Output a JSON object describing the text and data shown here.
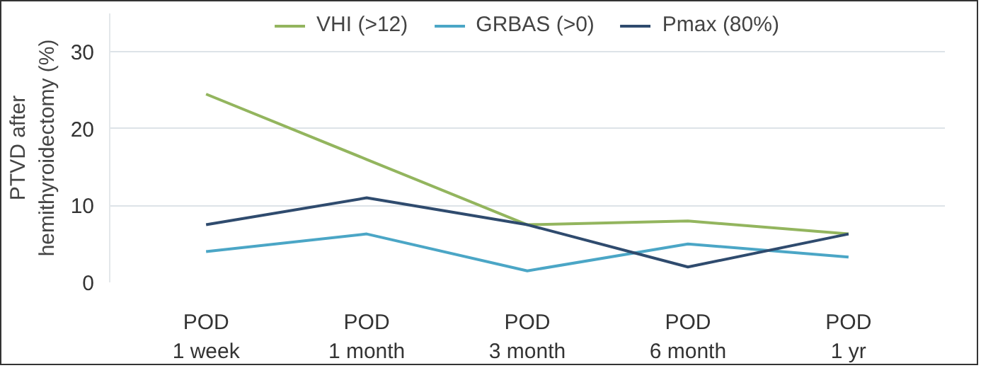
{
  "chart_data": {
    "type": "line",
    "ylabel": "PTVD after\nhemithyroidectomy (%)",
    "categories": [
      "POD\n1 week",
      "POD\n1 month",
      "POD\n3 month",
      "POD\n6 month",
      "POD\n1 yr"
    ],
    "series": [
      {
        "name": "VHI (>12)",
        "color": "#93b55e",
        "values": [
          24.5,
          16,
          7.5,
          8,
          6.3
        ]
      },
      {
        "name": "GRBAS (>0)",
        "color": "#4ba6c6",
        "values": [
          4,
          6.3,
          1.5,
          5,
          3.3
        ]
      },
      {
        "name": "Pmax (80%)",
        "color": "#2f4b6e",
        "values": [
          7.5,
          11,
          7.5,
          2,
          6.3
        ]
      }
    ],
    "ylim": [
      0,
      35
    ],
    "yticks": [
      0,
      10,
      20,
      30
    ],
    "grid": "y",
    "legend": "top"
  }
}
